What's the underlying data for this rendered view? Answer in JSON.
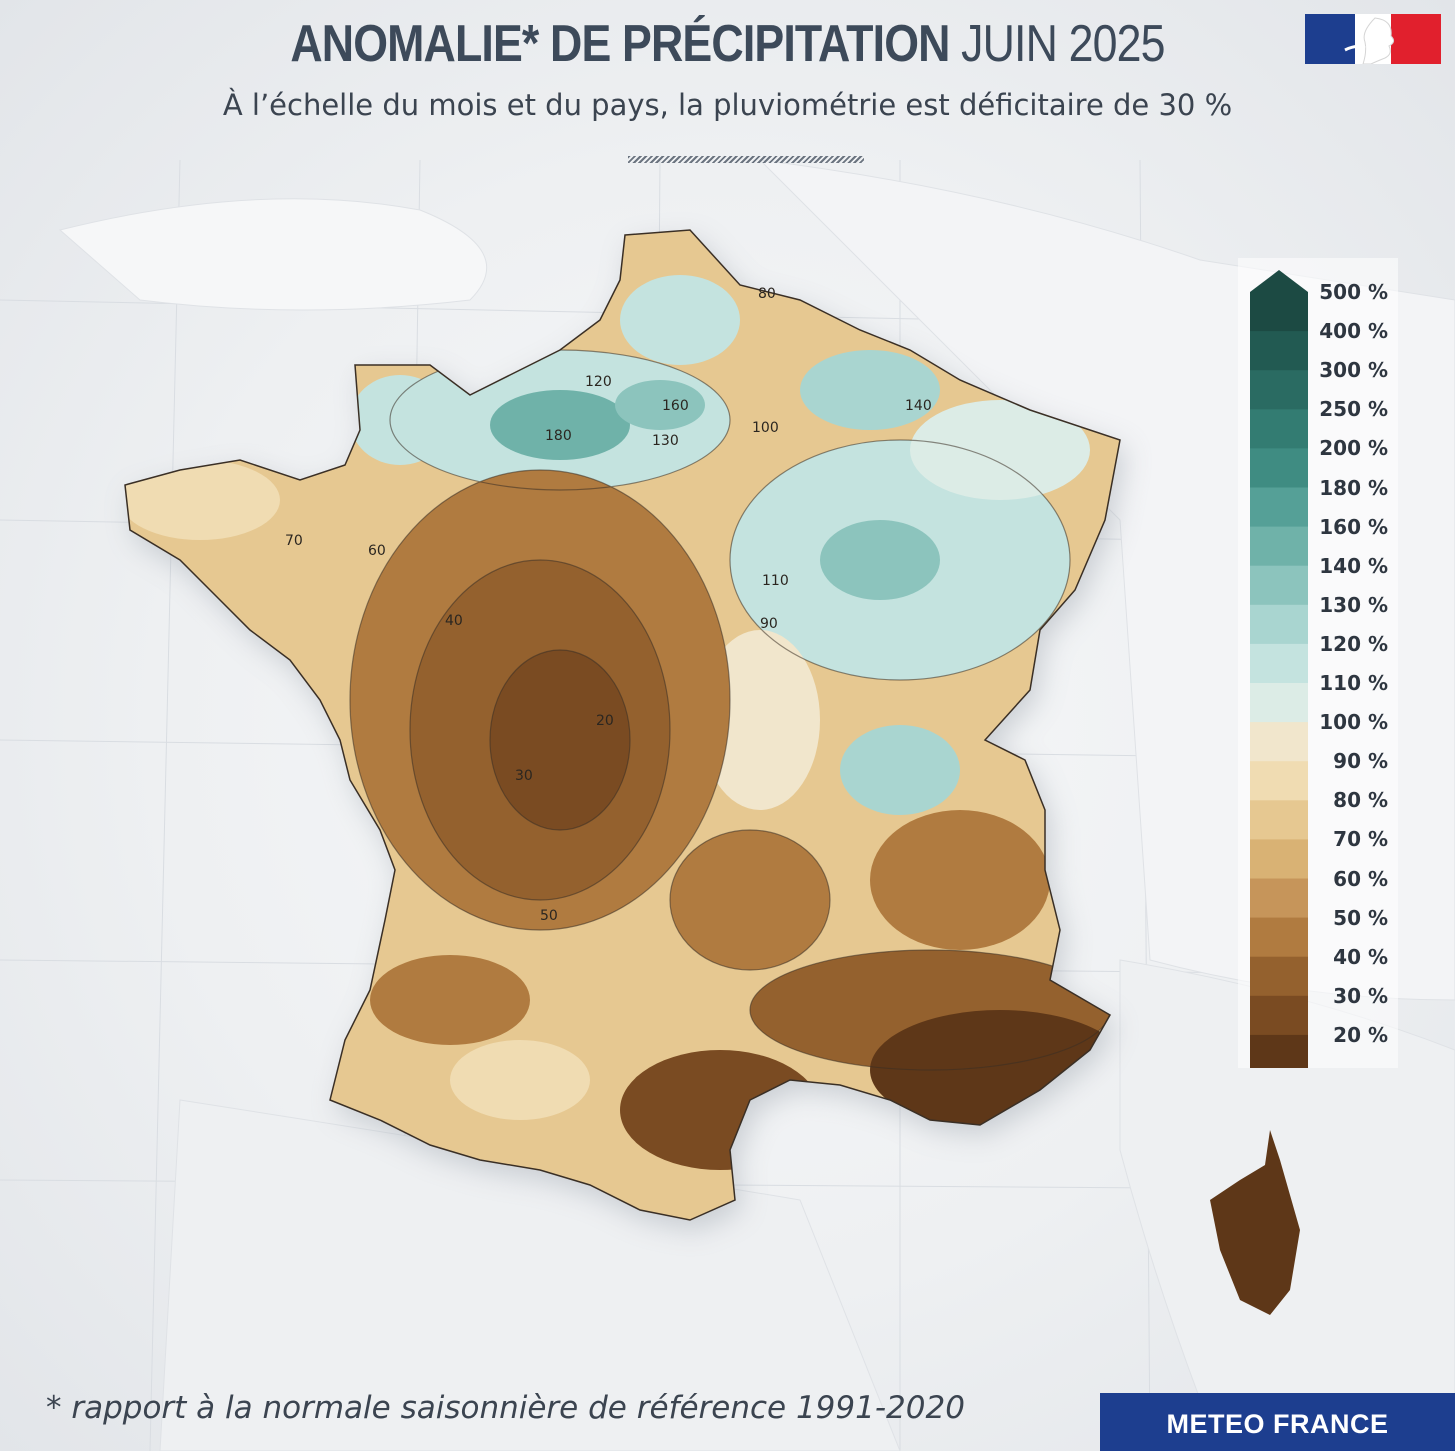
{
  "header": {
    "title_bold": "ANOMALIE* DE PRÉCIPITATION",
    "title_light": "JUIN 2025",
    "subtitle": "À l’échelle du mois et du pays, la pluviométrie est déficitaire de 30 %"
  },
  "legend": {
    "items": [
      {
        "label": "500 %",
        "color": "#1c4a43"
      },
      {
        "label": "400 %",
        "color": "#225a52"
      },
      {
        "label": "300 %",
        "color": "#2a6b62"
      },
      {
        "label": "250 %",
        "color": "#337c72"
      },
      {
        "label": "200 %",
        "color": "#3f8c82"
      },
      {
        "label": "180 %",
        "color": "#55a097"
      },
      {
        "label": "160 %",
        "color": "#6fb2a9"
      },
      {
        "label": "140 %",
        "color": "#8cc4bd"
      },
      {
        "label": "130 %",
        "color": "#a9d5d0"
      },
      {
        "label": "120 %",
        "color": "#c4e3df"
      },
      {
        "label": "110 %",
        "color": "#dcece6"
      },
      {
        "label": "100 %",
        "color": "#f1e6cc"
      },
      {
        "label": "90 %",
        "color": "#f0dcb2"
      },
      {
        "label": "80 %",
        "color": "#e6c891"
      },
      {
        "label": "70 %",
        "color": "#d9b274"
      },
      {
        "label": "60 %",
        "color": "#c6955a"
      },
      {
        "label": "50 %",
        "color": "#b07b40"
      },
      {
        "label": "40 %",
        "color": "#94612e"
      },
      {
        "label": "30 %",
        "color": "#7a4b22"
      },
      {
        "label": "20 %",
        "color": "#5e3718"
      }
    ]
  },
  "map": {
    "contour_labels": [
      "80",
      "100",
      "120",
      "130",
      "160",
      "180",
      "140",
      "110",
      "90",
      "70",
      "60",
      "50",
      "40",
      "30",
      "20"
    ]
  },
  "footer": {
    "footnote": "* rapport à la normale saisonnière de référence 1991-2020",
    "brand": "METEO FRANCE"
  }
}
